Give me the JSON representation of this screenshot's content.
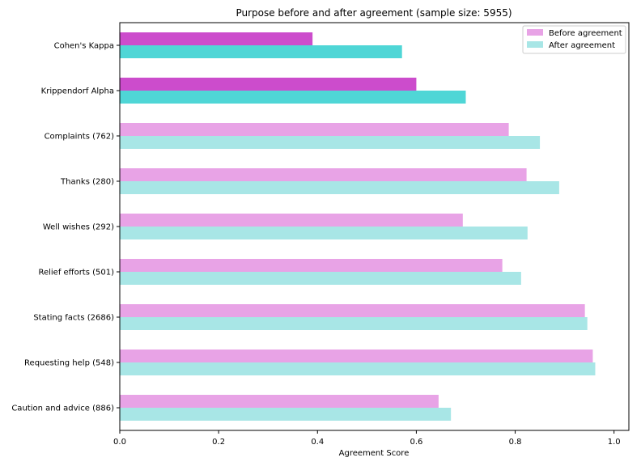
{
  "chart_data": {
    "type": "bar",
    "orientation": "horizontal",
    "title": "Purpose before and after agreement (sample size: 5955)",
    "xlabel": "Agreement Score",
    "ylabel": "",
    "xlim": [
      0,
      1.03
    ],
    "xticks": [
      0.0,
      0.2,
      0.4,
      0.6,
      0.8,
      1.0
    ],
    "xtick_labels": [
      "0.0",
      "0.2",
      "0.4",
      "0.6",
      "0.8",
      "1.0"
    ],
    "categories": [
      "Cohen's Kappa",
      "Krippendorf Alpha",
      "Complaints  (762)",
      "Thanks  (280)",
      "Well wishes  (292)",
      "Relief efforts  (501)",
      "Stating facts  (2686)",
      "Requesting help  (548)",
      "Caution and advice  (886)"
    ],
    "series": [
      {
        "name": "Before agreement",
        "values": [
          0.39,
          0.6,
          0.787,
          0.823,
          0.694,
          0.774,
          0.941,
          0.957,
          0.645
        ],
        "color": "#e8a3e6",
        "emphasis_color": "#cc4ccc"
      },
      {
        "name": "After agreement",
        "values": [
          0.571,
          0.7,
          0.85,
          0.889,
          0.825,
          0.812,
          0.946,
          0.962,
          0.67
        ],
        "color": "#a8e6e6",
        "emphasis_color": "#4fd6d6"
      }
    ],
    "emphasized_categories": [
      0,
      1
    ],
    "legend_position": "top-right",
    "grid": false
  }
}
